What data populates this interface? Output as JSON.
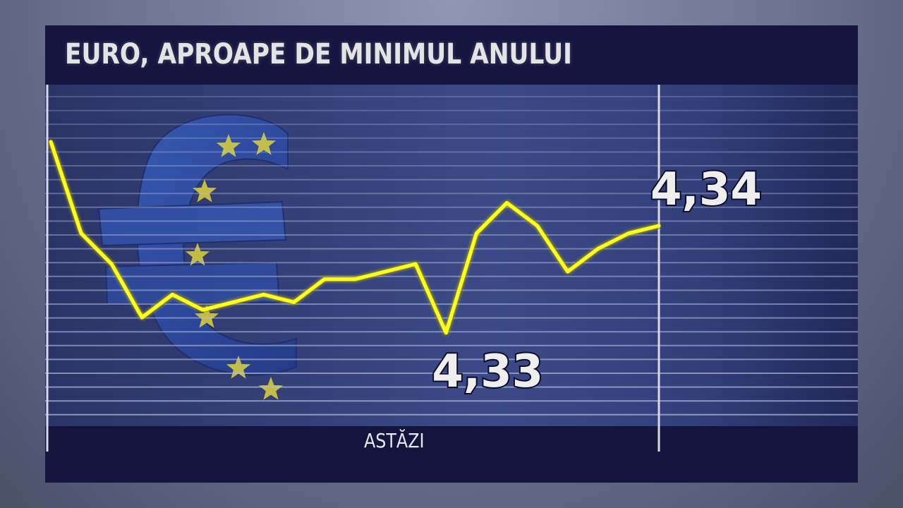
{
  "header": {
    "title": "EURO, APROAPE DE MINIMUL ANULUI"
  },
  "chart_data": {
    "type": "line",
    "title": "EURO, APROAPE DE MINIMUL ANULUI",
    "x_label": "ASTĂZI",
    "series": [
      {
        "values": [
          4.355,
          4.343,
          4.339,
          4.332,
          4.335,
          4.333,
          4.334,
          4.335,
          4.334,
          4.337,
          4.337,
          4.338,
          4.339,
          4.33,
          4.343,
          4.347,
          4.344,
          4.338,
          4.341,
          4.343,
          4.344
        ]
      }
    ],
    "annotations": [
      {
        "label": "4,33",
        "value": 4.33
      },
      {
        "label": "4,34",
        "value": 4.34
      }
    ],
    "colors": {
      "line": "#ffff1e",
      "background": "#13133f",
      "grid": "#b9bfe6"
    },
    "grid": true,
    "emblem": "euro-sign-with-eu-stars"
  }
}
